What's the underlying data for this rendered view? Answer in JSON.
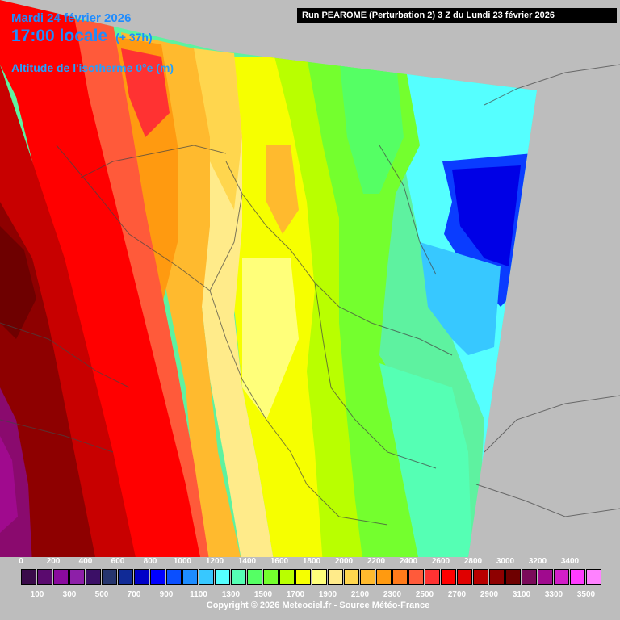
{
  "header": {
    "date": "Mardi 24 février 2026",
    "time": "17:00 locale",
    "lead": "(+ 37h)",
    "parameter": "Altitude de l'isotherme 0°e (m)",
    "run": "Run PEAROME (Perturbation 2) 3 Z du Lundi 23 février 2026"
  },
  "legend": {
    "top_ticks": [
      "0",
      "200",
      "400",
      "600",
      "800",
      "1000",
      "1200",
      "1400",
      "1600",
      "1800",
      "2000",
      "2200",
      "2400",
      "2600",
      "2800",
      "3000",
      "3200",
      "3400"
    ],
    "bottom_ticks": [
      "100",
      "300",
      "500",
      "700",
      "900",
      "1100",
      "1300",
      "1500",
      "1700",
      "1900",
      "2100",
      "2300",
      "2500",
      "2700",
      "2900",
      "3100",
      "3300",
      "3500"
    ],
    "colors": [
      "#3a0a4a",
      "#5a0a6e",
      "#8a0a9e",
      "#8d1fa8",
      "#3b0f66",
      "#26356e",
      "#102a96",
      "#0000c8",
      "#0000ff",
      "#0a4fff",
      "#1e8cff",
      "#37c8ff",
      "#55ffff",
      "#55ffb4",
      "#55ff64",
      "#74ff2e",
      "#b9ff00",
      "#f6ff00",
      "#ffff7a",
      "#ffeb8a",
      "#ffd64e",
      "#ffba2e",
      "#ff9a10",
      "#ff7a1a",
      "#ff5a3a",
      "#ff3232",
      "#ff0000",
      "#e00000",
      "#b80000",
      "#8e0000",
      "#6e0000",
      "#7a0a5a",
      "#a00a8e",
      "#d21ec8",
      "#ff3cff",
      "#ff82ff"
    ]
  },
  "footer": {
    "copyright": "Copyright © 2026 Meteociel.fr - Source Météo-France"
  }
}
